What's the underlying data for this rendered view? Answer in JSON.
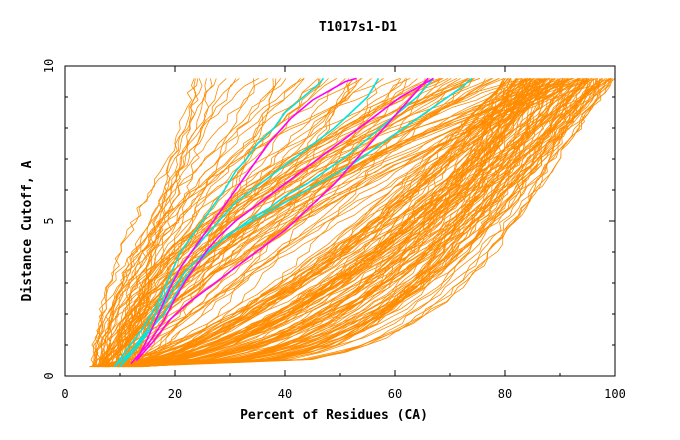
{
  "chart_data": {
    "type": "line",
    "title": "T1017s1-D1",
    "xlabel": "Percent of Residues (CA)",
    "ylabel": "Distance Cutoff, A",
    "xlim": [
      0,
      100
    ],
    "ylim": [
      0,
      10
    ],
    "x_ticks": [
      "0",
      "20",
      "40",
      "60",
      "80",
      "100"
    ],
    "y_ticks": [
      "0",
      "5",
      "10"
    ],
    "grid": false,
    "legend": "none",
    "colors": {
      "background_series": "#ff8c00",
      "highlight_cyan": "#00e5e5",
      "highlight_magenta": "#ff00ff"
    },
    "series": [
      {
        "color": "#00e5e5",
        "x": [
          9,
          11,
          14,
          17,
          19,
          21,
          23,
          25,
          27,
          29,
          31,
          33,
          35,
          38,
          40,
          42,
          44,
          46,
          47
        ],
        "y": [
          0.3,
          0.8,
          1.5,
          2.4,
          3.2,
          4.0,
          4.5,
          5.0,
          5.5,
          6.0,
          6.6,
          7.0,
          7.5,
          8.0,
          8.5,
          8.8,
          9.1,
          9.4,
          9.6
        ]
      },
      {
        "color": "#00e5e5",
        "x": [
          10,
          12,
          15,
          18,
          20,
          22,
          24,
          26,
          28,
          30,
          33,
          36,
          40,
          44,
          48,
          52,
          56,
          60,
          64,
          68,
          72,
          74
        ],
        "y": [
          0.3,
          0.8,
          1.4,
          2.0,
          2.6,
          3.2,
          3.6,
          4.0,
          4.3,
          4.6,
          4.9,
          5.2,
          5.6,
          6.0,
          6.4,
          6.8,
          7.3,
          7.8,
          8.3,
          8.8,
          9.3,
          9.6
        ]
      },
      {
        "color": "#00e5e5",
        "x": [
          9,
          12,
          15,
          17,
          19,
          21,
          23,
          25,
          27,
          29,
          31,
          34,
          37,
          40,
          43,
          46,
          49,
          52,
          55,
          57
        ],
        "y": [
          0.3,
          0.8,
          1.5,
          2.2,
          2.9,
          3.5,
          4.0,
          4.4,
          4.8,
          5.2,
          5.6,
          6.0,
          6.4,
          6.8,
          7.2,
          7.6,
          8.0,
          8.5,
          9.0,
          9.6
        ]
      },
      {
        "color": "#00e5e5",
        "x": [
          10,
          13,
          16,
          18,
          20,
          22,
          25,
          28,
          31,
          34,
          37,
          40,
          44,
          48,
          52,
          56,
          60,
          64,
          67
        ],
        "y": [
          0.3,
          0.9,
          1.6,
          2.3,
          2.9,
          3.4,
          3.9,
          4.3,
          4.7,
          5.1,
          5.4,
          5.8,
          6.2,
          6.7,
          7.2,
          7.8,
          8.4,
          9.0,
          9.6
        ]
      },
      {
        "color": "#ff00ff",
        "x": [
          13,
          15,
          17,
          19,
          21,
          23,
          25,
          27,
          29,
          31,
          33,
          35,
          37,
          39,
          41,
          43,
          45,
          47,
          49,
          51,
          53
        ],
        "y": [
          0.5,
          1.2,
          2.0,
          2.8,
          3.5,
          4.0,
          4.5,
          5.0,
          5.5,
          6.0,
          6.5,
          7.0,
          7.5,
          7.9,
          8.3,
          8.6,
          8.9,
          9.1,
          9.3,
          9.5,
          9.6
        ]
      },
      {
        "color": "#ff00ff",
        "x": [
          13,
          16,
          19,
          22,
          25,
          28,
          31,
          34,
          37,
          40,
          43,
          46,
          49,
          52,
          55,
          58,
          61,
          64,
          66
        ],
        "y": [
          0.5,
          1.1,
          1.8,
          2.3,
          2.7,
          3.1,
          3.5,
          3.9,
          4.3,
          4.7,
          5.2,
          5.7,
          6.2,
          6.8,
          7.4,
          8.0,
          8.6,
          9.2,
          9.6
        ]
      },
      {
        "color": "#ff00ff",
        "x": [
          12,
          15,
          18,
          20,
          22,
          24,
          26,
          28,
          31,
          34,
          37,
          40,
          43,
          46,
          49,
          52,
          55,
          58,
          61,
          64,
          66,
          67
        ],
        "y": [
          0.4,
          1.0,
          1.8,
          2.5,
          3.1,
          3.6,
          4.1,
          4.5,
          5.0,
          5.4,
          5.8,
          6.2,
          6.6,
          7.0,
          7.4,
          7.8,
          8.2,
          8.6,
          9.0,
          9.3,
          9.5,
          9.6
        ]
      }
    ]
  }
}
